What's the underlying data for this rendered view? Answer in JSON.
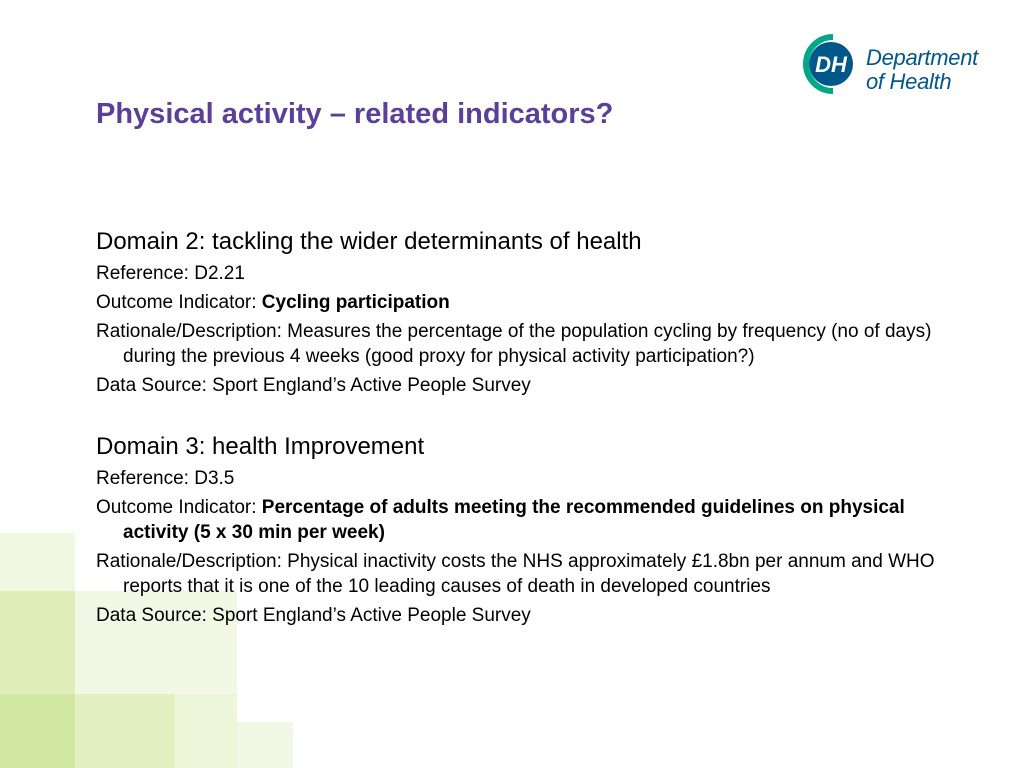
{
  "logo": {
    "abbr": "DH",
    "line1": "Department",
    "line2": "of Health"
  },
  "title": "Physical activity – related indicators?",
  "sections": [
    {
      "domain": "Domain 2: tackling the wider determinants of health",
      "reference": "Reference: D2.21",
      "outcome_label": "Outcome Indicator: ",
      "outcome_value": "Cycling participation",
      "rationale": "Rationale/Description: Measures the percentage of the population cycling by frequency (no of days) during the previous 4 weeks (good proxy for physical activity participation?)",
      "data_source": "Data Source: Sport England’s Active People Survey"
    },
    {
      "domain": "Domain 3: health Improvement",
      "reference": "Reference: D3.5",
      "outcome_label": "Outcome Indicator: ",
      "outcome_value": "Percentage of adults meeting the recommended guidelines on physical activity (5 x 30 min per week)",
      "rationale": "Rationale/Description: Physical inactivity costs the NHS approximately £1.8bn per annum and WHO reports that it is one of the 10 leading causes of death in developed countries",
      "data_source": "Data Source: Sport England’s Active People Survey"
    }
  ],
  "colors": {
    "title": "#5b3f98",
    "logo_blue": "#00578a",
    "logo_green": "#00a886"
  }
}
